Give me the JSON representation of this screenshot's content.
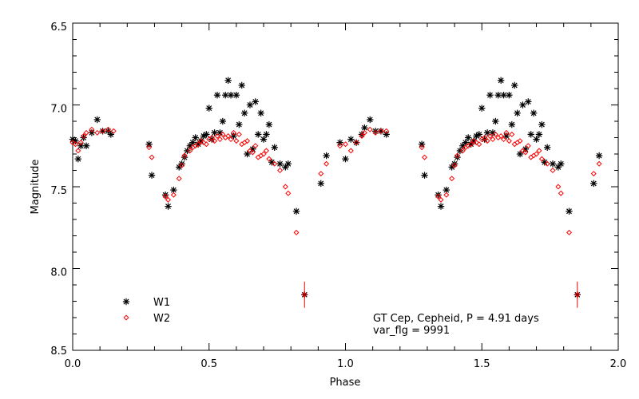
{
  "chart_data": {
    "type": "scatter",
    "title": "",
    "xlabel": "Phase",
    "ylabel": "Magnitude",
    "xlim": [
      0.0,
      2.0
    ],
    "ylim": [
      6.5,
      8.5
    ],
    "y_inverted": true,
    "grid": false,
    "legend_placement": "bottom-left",
    "x_ticks": [
      "0.0",
      "0.5",
      "1.0",
      "1.5",
      "2.0"
    ],
    "y_ticks": [
      "6.5",
      "7.0",
      "7.5",
      "8.0",
      "8.5"
    ],
    "annotation_lines": [
      "GT Cep, Cepheid, P = 4.91 days",
      "var_flg = 9991"
    ],
    "series": [
      {
        "name": "W1",
        "color": "#000000",
        "marker": "asterisk",
        "x": [
          0.0,
          0.01,
          0.02,
          0.03,
          0.04,
          0.05,
          0.07,
          0.09,
          0.11,
          0.13,
          0.14,
          0.28,
          0.29,
          0.34,
          0.35,
          0.37,
          0.39,
          0.4,
          0.41,
          0.42,
          0.43,
          0.44,
          0.45,
          0.46,
          0.47,
          0.48,
          0.49,
          0.5,
          0.51,
          0.52,
          0.53,
          0.54,
          0.55,
          0.56,
          0.57,
          0.58,
          0.59,
          0.6,
          0.61,
          0.62,
          0.63,
          0.64,
          0.65,
          0.66,
          0.67,
          0.68,
          0.69,
          0.7,
          0.71,
          0.72,
          0.73,
          0.74,
          0.76,
          0.78,
          0.79,
          0.82,
          0.85,
          0.91,
          0.93,
          0.98,
          1.0,
          1.02,
          1.04,
          1.06,
          1.07,
          1.09,
          1.11,
          1.13,
          1.15,
          1.28,
          1.29,
          1.34,
          1.35,
          1.37,
          1.39,
          1.4,
          1.41,
          1.42,
          1.43,
          1.44,
          1.45,
          1.46,
          1.47,
          1.48,
          1.49,
          1.5,
          1.51,
          1.52,
          1.53,
          1.54,
          1.55,
          1.56,
          1.57,
          1.58,
          1.59,
          1.6,
          1.61,
          1.62,
          1.63,
          1.64,
          1.65,
          1.66,
          1.67,
          1.68,
          1.69,
          1.7,
          1.71,
          1.72,
          1.73,
          1.74,
          1.76,
          1.78,
          1.79,
          1.82,
          1.85,
          1.91,
          1.93
        ],
        "y": [
          7.21,
          7.22,
          7.33,
          7.25,
          7.2,
          7.25,
          7.17,
          7.09,
          7.16,
          7.16,
          7.18,
          7.24,
          7.43,
          7.55,
          7.62,
          7.52,
          7.38,
          7.36,
          7.32,
          7.28,
          7.25,
          7.23,
          7.2,
          7.24,
          7.22,
          7.19,
          7.18,
          7.02,
          7.21,
          7.17,
          6.94,
          7.17,
          7.1,
          6.94,
          6.85,
          6.94,
          7.19,
          6.94,
          7.12,
          6.88,
          7.05,
          7.3,
          7.0,
          7.27,
          6.98,
          7.18,
          7.05,
          7.21,
          7.18,
          7.12,
          7.35,
          7.26,
          7.36,
          7.38,
          7.36,
          7.65,
          8.16,
          7.48,
          7.31,
          7.23,
          7.33,
          7.21,
          7.23,
          7.18,
          7.14,
          7.09,
          7.16,
          7.16,
          7.18,
          7.24,
          7.43,
          7.55,
          7.62,
          7.52,
          7.38,
          7.36,
          7.32,
          7.28,
          7.25,
          7.23,
          7.2,
          7.24,
          7.22,
          7.19,
          7.18,
          7.02,
          7.21,
          7.17,
          6.94,
          7.17,
          7.1,
          6.94,
          6.85,
          6.94,
          7.19,
          6.94,
          7.12,
          6.88,
          7.05,
          7.3,
          7.0,
          7.27,
          6.98,
          7.18,
          7.05,
          7.21,
          7.18,
          7.12,
          7.35,
          7.26,
          7.36,
          7.38,
          7.36,
          7.65,
          8.16,
          7.48,
          7.31
        ]
      },
      {
        "name": "W2",
        "color": "#ff0000",
        "marker": "diamond",
        "x": [
          0.0,
          0.01,
          0.02,
          0.03,
          0.04,
          0.05,
          0.07,
          0.09,
          0.11,
          0.13,
          0.15,
          0.28,
          0.29,
          0.34,
          0.35,
          0.37,
          0.39,
          0.4,
          0.41,
          0.43,
          0.44,
          0.45,
          0.46,
          0.47,
          0.48,
          0.49,
          0.5,
          0.51,
          0.52,
          0.53,
          0.54,
          0.55,
          0.56,
          0.57,
          0.58,
          0.59,
          0.6,
          0.61,
          0.62,
          0.63,
          0.64,
          0.65,
          0.66,
          0.67,
          0.68,
          0.69,
          0.7,
          0.71,
          0.72,
          0.74,
          0.76,
          0.78,
          0.79,
          0.82,
          0.85,
          0.91,
          0.93,
          0.98,
          1.0,
          1.02,
          1.04,
          1.06,
          1.07,
          1.09,
          1.11,
          1.13,
          1.15,
          1.28,
          1.29,
          1.34,
          1.35,
          1.37,
          1.39,
          1.4,
          1.41,
          1.43,
          1.44,
          1.45,
          1.46,
          1.47,
          1.48,
          1.49,
          1.5,
          1.51,
          1.52,
          1.53,
          1.54,
          1.55,
          1.56,
          1.57,
          1.58,
          1.59,
          1.6,
          1.61,
          1.62,
          1.63,
          1.64,
          1.65,
          1.66,
          1.67,
          1.68,
          1.69,
          1.7,
          1.71,
          1.72,
          1.74,
          1.76,
          1.78,
          1.79,
          1.82,
          1.85,
          1.91,
          1.93
        ],
        "y": [
          7.23,
          7.24,
          7.28,
          7.23,
          7.19,
          7.17,
          7.15,
          7.17,
          7.16,
          7.15,
          7.16,
          7.26,
          7.32,
          7.56,
          7.58,
          7.55,
          7.45,
          7.37,
          7.31,
          7.28,
          7.26,
          7.25,
          7.24,
          7.22,
          7.23,
          7.24,
          7.21,
          7.2,
          7.22,
          7.19,
          7.21,
          7.18,
          7.2,
          7.19,
          7.21,
          7.17,
          7.22,
          7.18,
          7.24,
          7.23,
          7.22,
          7.28,
          7.29,
          7.25,
          7.32,
          7.31,
          7.3,
          7.28,
          7.33,
          7.36,
          7.4,
          7.5,
          7.54,
          7.78,
          8.16,
          7.42,
          7.36,
          7.25,
          7.24,
          7.28,
          7.23,
          7.19,
          7.17,
          7.15,
          7.17,
          7.16,
          7.16,
          7.26,
          7.32,
          7.56,
          7.58,
          7.55,
          7.45,
          7.37,
          7.31,
          7.28,
          7.26,
          7.25,
          7.24,
          7.22,
          7.23,
          7.24,
          7.21,
          7.2,
          7.22,
          7.19,
          7.21,
          7.18,
          7.2,
          7.19,
          7.21,
          7.17,
          7.22,
          7.18,
          7.24,
          7.23,
          7.22,
          7.28,
          7.29,
          7.25,
          7.32,
          7.31,
          7.3,
          7.28,
          7.33,
          7.36,
          7.4,
          7.5,
          7.54,
          7.78,
          8.16,
          7.42,
          7.36
        ]
      }
    ]
  }
}
